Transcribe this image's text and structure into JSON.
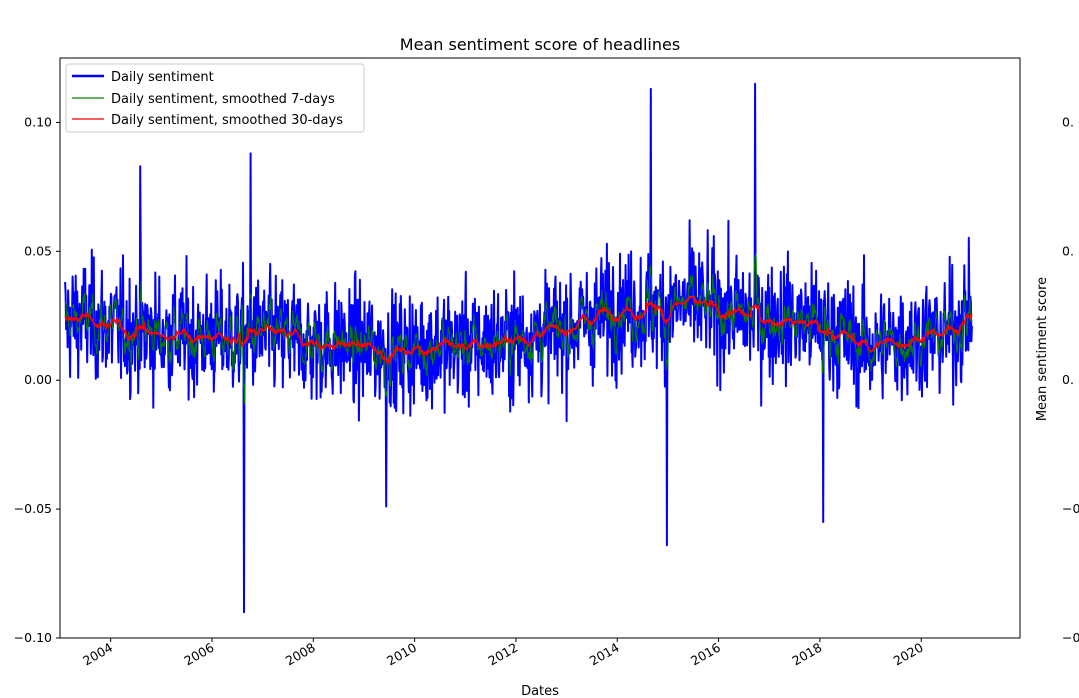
{
  "chart_data": {
    "type": "line",
    "title": "Mean sentiment score of headlines",
    "xlabel": "Dates",
    "ylabel": "",
    "ylim": [
      -0.1,
      0.125
    ],
    "xlim": [
      "2003-01-01",
      "2021-12-31"
    ],
    "yticks": [
      -0.1,
      -0.05,
      0.0,
      0.05,
      0.1
    ],
    "ytick_labels": [
      "−0.10",
      "−0.05",
      "0.00",
      "0.05",
      "0.10"
    ],
    "xticks": [
      "2004",
      "2006",
      "2008",
      "2010",
      "2012",
      "2014",
      "2016",
      "2018",
      "2020"
    ],
    "grid": false,
    "legend": {
      "placement": "top-left"
    },
    "series": [
      {
        "name": "Daily sentiment",
        "color": "#0000ff",
        "approximate_band": {
          "typical_low": -0.02,
          "typical_high": 0.06
        },
        "notable_values": [
          {
            "x": "2006-08-20",
            "y": -0.09
          },
          {
            "x": "2006-10-05",
            "y": 0.088
          },
          {
            "x": "2004-08-01",
            "y": 0.083
          },
          {
            "x": "2014-09-01",
            "y": 0.113
          },
          {
            "x": "2014-12-25",
            "y": -0.064
          },
          {
            "x": "2016-09-20",
            "y": 0.115
          },
          {
            "x": "2018-01-25",
            "y": -0.055
          },
          {
            "x": "2009-06-10",
            "y": -0.049
          }
        ]
      },
      {
        "name": "Daily sentiment, smoothed 7-days",
        "color": "#008000"
      },
      {
        "name": "Daily sentiment, smoothed 30-days",
        "color": "#ff0000",
        "points": [
          {
            "x": "2003.1",
            "y": 0.023
          },
          {
            "x": "2003.5",
            "y": 0.024
          },
          {
            "x": "2004.0",
            "y": 0.021
          },
          {
            "x": "2004.5",
            "y": 0.019
          },
          {
            "x": "2005.0",
            "y": 0.018
          },
          {
            "x": "2005.5",
            "y": 0.017
          },
          {
            "x": "2006.0",
            "y": 0.017
          },
          {
            "x": "2006.5",
            "y": 0.016
          },
          {
            "x": "2007.0",
            "y": 0.018
          },
          {
            "x": "2007.5",
            "y": 0.017
          },
          {
            "x": "2008.0",
            "y": 0.014
          },
          {
            "x": "2008.5",
            "y": 0.014
          },
          {
            "x": "2009.0",
            "y": 0.013
          },
          {
            "x": "2009.5",
            "y": 0.011
          },
          {
            "x": "2010.0",
            "y": 0.012
          },
          {
            "x": "2010.5",
            "y": 0.014
          },
          {
            "x": "2011.0",
            "y": 0.013
          },
          {
            "x": "2011.5",
            "y": 0.014
          },
          {
            "x": "2012.0",
            "y": 0.016
          },
          {
            "x": "2012.5",
            "y": 0.018
          },
          {
            "x": "2013.0",
            "y": 0.02
          },
          {
            "x": "2013.5",
            "y": 0.024
          },
          {
            "x": "2014.0",
            "y": 0.028
          },
          {
            "x": "2014.5",
            "y": 0.027
          },
          {
            "x": "2015.0",
            "y": 0.028
          },
          {
            "x": "2015.5",
            "y": 0.03
          },
          {
            "x": "2016.0",
            "y": 0.027
          },
          {
            "x": "2016.5",
            "y": 0.025
          },
          {
            "x": "2017.0",
            "y": 0.024
          },
          {
            "x": "2017.5",
            "y": 0.023
          },
          {
            "x": "2018.0",
            "y": 0.021
          },
          {
            "x": "2018.5",
            "y": 0.017
          },
          {
            "x": "2019.0",
            "y": 0.013
          },
          {
            "x": "2019.5",
            "y": 0.015
          },
          {
            "x": "2020.0",
            "y": 0.017
          },
          {
            "x": "2020.5",
            "y": 0.018
          },
          {
            "x": "2021.0",
            "y": 0.026
          }
        ]
      }
    ]
  },
  "right_axis": {
    "label": "Mean sentiment score",
    "tick_labels": [
      "0.",
      "0.",
      "0.",
      "−0.",
      "−0."
    ]
  }
}
